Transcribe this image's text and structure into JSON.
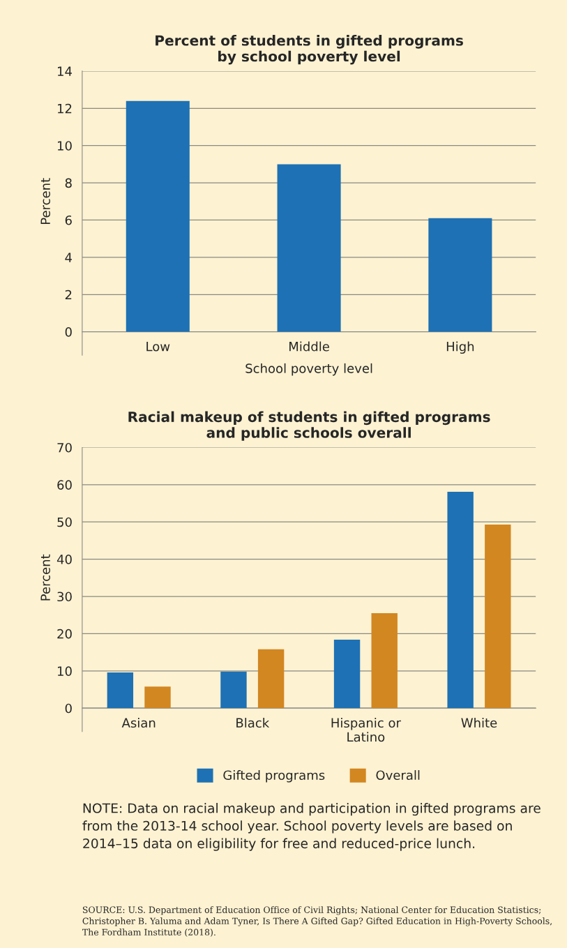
{
  "chart_data": [
    {
      "type": "bar",
      "title": "Percent of students in gifted programs\nby school poverty level",
      "xlabel": "School poverty level",
      "ylabel": "Percent",
      "categories": [
        "Low",
        "Middle",
        "High"
      ],
      "values": [
        12.4,
        9.0,
        6.1
      ],
      "color": "#1d71b4",
      "ylim": [
        0,
        14
      ],
      "yticks": [
        0,
        2,
        4,
        6,
        8,
        10,
        12,
        14
      ],
      "grid": "y"
    },
    {
      "type": "bar",
      "title": "Racial makeup of students in gifted programs\nand public schools overall",
      "ylabel": "Percent",
      "categories": [
        "Asian",
        "Black",
        "Hispanic or\nLatino",
        "White"
      ],
      "series": [
        {
          "name": "Gifted programs",
          "color": "#1d71b4",
          "values": [
            9.6,
            9.8,
            18.4,
            58.1
          ]
        },
        {
          "name": "Overall",
          "color": "#d28721",
          "values": [
            5.8,
            15.8,
            25.5,
            49.3
          ]
        }
      ],
      "ylim": [
        0,
        70
      ],
      "yticks": [
        0,
        10,
        20,
        30,
        40,
        50,
        60,
        70
      ],
      "grid": "y",
      "legend": "bottom",
      "annotations": [
        "NOTE: Data on racial makeup and participation in gifted programs are from the 2013-14 school year. School poverty levels are based on 2014–15 data on eligibility for free and reduced-price lunch.",
        "SOURCE: U.S. Department of Education Office of Civil Rights; National Center for Education Statistics; Christopher B. Yaluma and Adam Tyner, Is There A Gifted Gap? Gifted Education in High-Poverty Schools, The Fordham Institute (2018)."
      ]
    }
  ]
}
